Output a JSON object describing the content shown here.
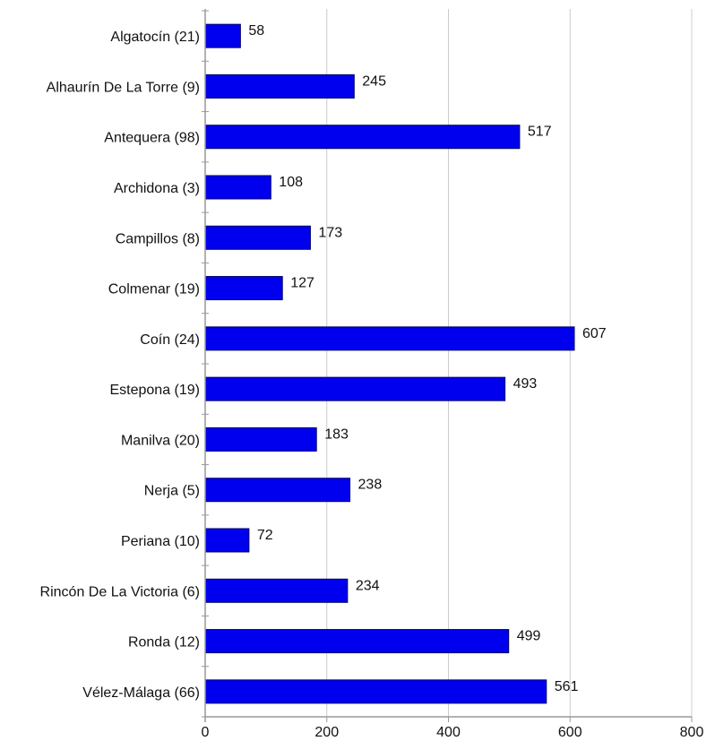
{
  "chart_data": {
    "type": "bar",
    "orientation": "horizontal",
    "categories": [
      "Algatocín (21)",
      "Alhaurín De La Torre (9)",
      "Antequera (98)",
      "Archidona (3)",
      "Campillos (8)",
      "Colmenar (19)",
      "Coín (24)",
      "Estepona (19)",
      "Manilva (20)",
      "Nerja (5)",
      "Periana (10)",
      "Rincón De La Victoria (6)",
      "Ronda (12)",
      "Vélez-Málaga (66)"
    ],
    "values": [
      58,
      245,
      517,
      108,
      173,
      127,
      607,
      493,
      183,
      238,
      72,
      234,
      499,
      561
    ],
    "value_labels": [
      "58",
      "245",
      "517",
      "108",
      "173",
      "127",
      "607",
      "493",
      "183",
      "238",
      "72",
      "234",
      "499",
      "561"
    ],
    "xlim": [
      0,
      800
    ],
    "xticks": [
      0,
      200,
      400,
      600,
      800
    ],
    "xtick_labels": [
      "0",
      "200",
      "400",
      "600",
      "800"
    ],
    "grid": "vertical",
    "bar_color": "#0000ee",
    "bar_edge_color": "#000066",
    "grid_color": "#cccccc",
    "axis_color": "#999999"
  }
}
